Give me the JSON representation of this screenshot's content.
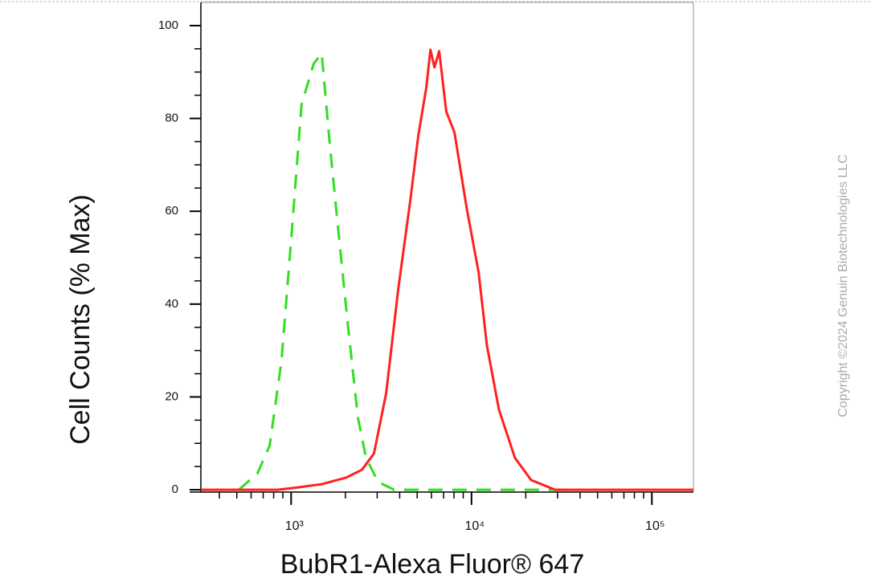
{
  "chart_data": {
    "type": "line",
    "xlabel": "BubR1-Alexa Fluor® 647",
    "ylabel": "Cell Counts (% Max)",
    "annotation": "Copyright ©2024 Genuin Biotechnologies LLC",
    "log_x": true,
    "xlim": [
      316,
      170000
    ],
    "ylim": [
      -0.5,
      105
    ],
    "xticks": [
      {
        "value": 1000,
        "label": "10³"
      },
      {
        "value": 10000,
        "label": "10⁴"
      },
      {
        "value": 100000,
        "label": "10⁵"
      }
    ],
    "xminorticks": [
      400,
      500,
      600,
      700,
      800,
      900,
      2000,
      3000,
      4000,
      5000,
      6000,
      7000,
      8000,
      9000,
      20000,
      30000,
      40000,
      50000,
      60000,
      70000,
      80000,
      90000
    ],
    "yticks": [
      0,
      20,
      40,
      60,
      80,
      100
    ],
    "yminorticks": [
      5,
      10,
      15,
      25,
      30,
      35,
      45,
      50,
      55,
      65,
      70,
      75,
      85,
      90,
      95
    ],
    "series": [
      {
        "color": "#33dd22",
        "style": "dashed",
        "x": [
          513,
          650,
          760,
          884,
          1000,
          1143,
          1334,
          1478,
          1637,
          1814,
          2053,
          2346,
          2600,
          3033,
          3727,
          31600
        ],
        "values": [
          0,
          3.5,
          9.5,
          27.7,
          53.7,
          83,
          91.8,
          94,
          74.5,
          57,
          36.4,
          15.6,
          6.9,
          1.7,
          0,
          0
        ]
      },
      {
        "color": "#ff2020",
        "style": "solid",
        "x": [
          316,
          840,
          1086,
          1478,
          2010,
          2470,
          2880,
          3366,
          3927,
          4580,
          5070,
          5620,
          5920,
          6230,
          6620,
          7250,
          8050,
          9400,
          10960,
          12160,
          14190,
          17400,
          21400,
          29100,
          170000
        ],
        "values": [
          0,
          0,
          0.5,
          1.2,
          2.6,
          4.3,
          7.8,
          20.8,
          43.3,
          62.4,
          76.3,
          86.7,
          94.8,
          91,
          94.5,
          81.5,
          77,
          60.7,
          46.8,
          31.2,
          17.3,
          6.9,
          2.1,
          0,
          0
        ]
      }
    ]
  }
}
